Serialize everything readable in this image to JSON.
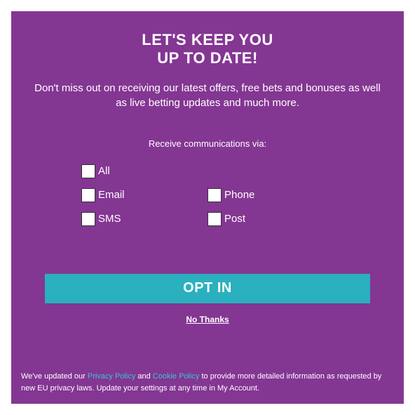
{
  "colors": {
    "modal_bg": "#843693",
    "text": "#ffffff",
    "accent_button": "#2ab0bf",
    "link": "#37c5d6",
    "checkbox_bg": "#ffffff"
  },
  "title_line1": "LET'S KEEP YOU",
  "title_line2": "UP TO DATE!",
  "subtitle": "Don't miss out on receiving our latest offers, free bets and bonuses as well as live betting updates and much more.",
  "subhead": "Receive communications via:",
  "options": {
    "all": "All",
    "email": "Email",
    "phone": "Phone",
    "sms": "SMS",
    "post": "Post"
  },
  "optin_button": "OPT IN",
  "decline_link": "No Thanks",
  "footer": {
    "pre": "We've updated our ",
    "privacy": "Privacy Policy",
    "and": " and ",
    "cookie": "Cookie Policy",
    "post": " to provide more detailed information as requested by new EU privacy laws. Update your settings at any time in My Account."
  }
}
